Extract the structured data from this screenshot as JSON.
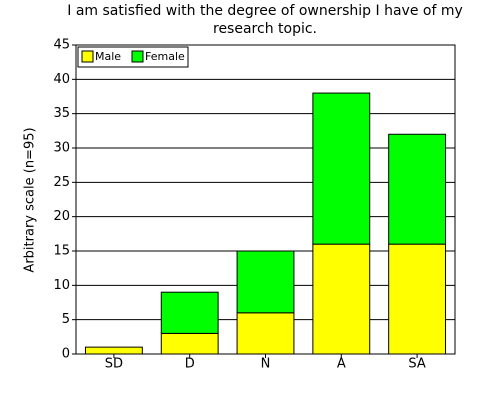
{
  "chart_data": {
    "type": "stacked-bar",
    "title": "I am satisfied with the degree of ownership I have of my research topic.",
    "y_label": "Arbitrary scale (n=95)",
    "categories": [
      "SD",
      "D",
      "N",
      "A",
      "SA"
    ],
    "series": [
      {
        "name": "Male",
        "color": "#ffff00",
        "values": [
          1,
          3,
          6,
          16,
          16
        ]
      },
      {
        "name": "Female",
        "color": "#00ff00",
        "values": [
          0,
          6,
          9,
          22,
          16
        ]
      }
    ],
    "ylim": [
      0,
      45
    ],
    "yticks": [
      0,
      5,
      10,
      15,
      20,
      25,
      30,
      35,
      40,
      45
    ],
    "grid": true,
    "legend": "top-left"
  }
}
